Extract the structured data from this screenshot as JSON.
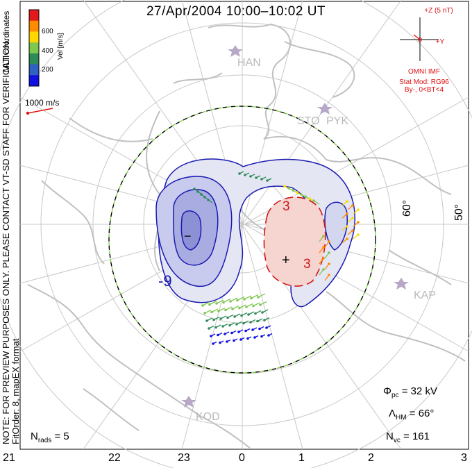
{
  "title": "27/Apr/2004 10:00–10:02 UT",
  "note_line1": "NOTE: FOR PREVIEW PURPOSES ONLY. PLEASE CONTACT VT-SD STAFF FOR VERIFICATION.",
  "note_line2": "FitOrder: 8, mapEX format",
  "coordinate_label": "MLT coordinates",
  "velocity_scale": {
    "unit_label": "Vel [m/s]",
    "ticks": [
      "600",
      "400",
      "200"
    ],
    "colors": [
      "#e31a1c",
      "#ff8c00",
      "#ffd700",
      "#7ec850",
      "#2e8b57",
      "#3060c0",
      "#1010e0"
    ]
  },
  "reference_vector_label": "1000 m/s",
  "imf": {
    "z_label": "+Z (5 nT)",
    "y_label": "+Y",
    "source": "OMNI IMF",
    "model": "Stat Mod: RG96",
    "condition": "By-, 0<BT<4"
  },
  "stations": [
    "HAN",
    "STO",
    "PYK",
    "KAP",
    "KOD"
  ],
  "latitude_labels": [
    "60°",
    "50°"
  ],
  "contour_labels": {
    "negative": "-9",
    "positive_a": "3",
    "positive_b": "3",
    "minus_marker": "−",
    "plus_marker": "+"
  },
  "stats": {
    "n_rads_label": "N",
    "n_rads_sub": "rads",
    "n_rads_value": "= 5",
    "phi_label": "Φ",
    "phi_sub": "pc",
    "phi_value": "= 32 kV",
    "lambda_label": "Λ",
    "lambda_sub": "HM",
    "lambda_value": "= 66°",
    "nvc_label": "N",
    "nvc_sub": "vc",
    "nvc_value": "= 161"
  },
  "mlt_ticks": [
    "21",
    "22",
    "23",
    "0",
    "1",
    "2",
    "3"
  ],
  "colors": {
    "convection_negative": "#1a1ab0",
    "convection_positive": "#d01818",
    "boundary_dash": "#7ccf3c",
    "coastline": "#c0c0c0",
    "grid": "#c8c8c8"
  }
}
